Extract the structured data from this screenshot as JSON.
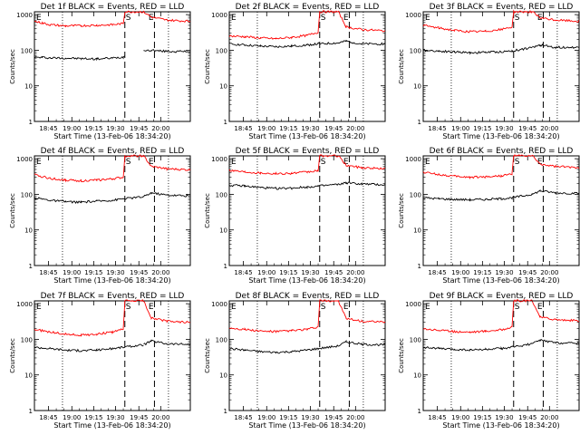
{
  "figure": {
    "xlabel": "Start Time (13-Feb-06 18:34:20)",
    "ylabel": "Counts/sec",
    "x_ticks": [
      "18:45",
      "19:00",
      "19:15",
      "19:30",
      "19:45",
      "20:00"
    ],
    "y_ticks": [
      "1",
      "10",
      "100",
      "1000"
    ],
    "marker_S": "S",
    "marker_E": "E",
    "colors": {
      "events": "#000000",
      "lld": "#ff0000",
      "axis": "#000000"
    }
  },
  "chart_data": [
    {
      "type": "line",
      "title": "Det 1f BLACK = Events, RED = LLD",
      "ylim": [
        1,
        1200
      ],
      "xlim": [
        0,
        100
      ],
      "gap": [
        58,
        70
      ],
      "markers": {
        "dotted": [
          18,
          86
        ],
        "dashed": [
          58,
          77
        ],
        "S": 58,
        "E": 72
      },
      "series": [
        {
          "name": "Events",
          "color": "#000000",
          "points": [
            [
              0,
              62
            ],
            [
              5,
              63
            ],
            [
              10,
              61
            ],
            [
              20,
              60
            ],
            [
              30,
              58
            ],
            [
              40,
              57
            ],
            [
              50,
              60
            ],
            [
              57,
              64
            ],
            [
              58,
              70
            ],
            [
              70,
              95
            ],
            [
              75,
              100
            ],
            [
              80,
              95
            ],
            [
              90,
              92
            ],
            [
              100,
              92
            ]
          ]
        },
        {
          "name": "LLD",
          "color": "#ff0000",
          "points": [
            [
              0,
              650
            ],
            [
              5,
              580
            ],
            [
              10,
              520
            ],
            [
              20,
              480
            ],
            [
              30,
              490
            ],
            [
              40,
              500
            ],
            [
              50,
              520
            ],
            [
              57,
              560
            ],
            [
              58,
              1200
            ],
            [
              70,
              1200
            ],
            [
              75,
              850
            ],
            [
              85,
              700
            ],
            [
              100,
              650
            ]
          ]
        }
      ]
    },
    {
      "type": "line",
      "title": "Det 2f BLACK = Events, RED = LLD",
      "ylim": [
        1,
        1200
      ],
      "xlim": [
        0,
        100
      ],
      "gap": [
        58,
        70
      ],
      "markers": {
        "dotted": [
          18,
          86
        ],
        "dashed": [
          58,
          77
        ],
        "S": 58,
        "E": 72
      },
      "series": [
        {
          "name": "Events",
          "color": "#000000",
          "points": [
            [
              0,
              150
            ],
            [
              10,
              140
            ],
            [
              20,
              130
            ],
            [
              30,
              125
            ],
            [
              40,
              130
            ],
            [
              50,
              140
            ],
            [
              57,
              150
            ],
            [
              70,
              160
            ],
            [
              75,
              180
            ],
            [
              85,
              150
            ],
            [
              100,
              150
            ]
          ]
        },
        {
          "name": "LLD",
          "color": "#ff0000",
          "points": [
            [
              0,
              250
            ],
            [
              10,
              240
            ],
            [
              20,
              220
            ],
            [
              30,
              210
            ],
            [
              40,
              230
            ],
            [
              50,
              260
            ],
            [
              57,
              320
            ],
            [
              58,
              1200
            ],
            [
              70,
              1200
            ],
            [
              75,
              450
            ],
            [
              85,
              380
            ],
            [
              100,
              350
            ]
          ]
        }
      ]
    },
    {
      "type": "line",
      "title": "Det 3f BLACK = Events, RED = LLD",
      "ylim": [
        1,
        1200
      ],
      "xlim": [
        0,
        100
      ],
      "gap": [
        58,
        70
      ],
      "markers": {
        "dotted": [
          18,
          86
        ],
        "dashed": [
          58,
          77
        ],
        "S": 58,
        "E": 72
      },
      "series": [
        {
          "name": "Events",
          "color": "#000000",
          "points": [
            [
              0,
              100
            ],
            [
              10,
              95
            ],
            [
              20,
              90
            ],
            [
              30,
              85
            ],
            [
              40,
              88
            ],
            [
              50,
              90
            ],
            [
              57,
              95
            ],
            [
              70,
              120
            ],
            [
              75,
              140
            ],
            [
              85,
              120
            ],
            [
              100,
              120
            ]
          ]
        },
        {
          "name": "LLD",
          "color": "#ff0000",
          "points": [
            [
              0,
              500
            ],
            [
              10,
              420
            ],
            [
              20,
              360
            ],
            [
              30,
              330
            ],
            [
              40,
              340
            ],
            [
              50,
              380
            ],
            [
              57,
              450
            ],
            [
              58,
              1200
            ],
            [
              70,
              1200
            ],
            [
              75,
              800
            ],
            [
              85,
              700
            ],
            [
              100,
              650
            ]
          ]
        }
      ]
    },
    {
      "type": "line",
      "title": "Det 4f BLACK = Events, RED = LLD",
      "ylim": [
        1,
        1200
      ],
      "xlim": [
        0,
        100
      ],
      "gap": [
        58,
        70
      ],
      "markers": {
        "dotted": [
          18,
          86
        ],
        "dashed": [
          58,
          77
        ],
        "S": 58,
        "E": 72
      },
      "series": [
        {
          "name": "Events",
          "color": "#000000",
          "points": [
            [
              0,
              80
            ],
            [
              10,
              68
            ],
            [
              20,
              62
            ],
            [
              30,
              60
            ],
            [
              40,
              64
            ],
            [
              50,
              68
            ],
            [
              57,
              75
            ],
            [
              70,
              85
            ],
            [
              75,
              110
            ],
            [
              85,
              95
            ],
            [
              100,
              90
            ]
          ]
        },
        {
          "name": "LLD",
          "color": "#ff0000",
          "points": [
            [
              0,
              350
            ],
            [
              10,
              280
            ],
            [
              20,
              250
            ],
            [
              30,
              240
            ],
            [
              40,
              250
            ],
            [
              50,
              270
            ],
            [
              57,
              300
            ],
            [
              58,
              1200
            ],
            [
              70,
              1200
            ],
            [
              75,
              600
            ],
            [
              85,
              520
            ],
            [
              100,
              480
            ]
          ]
        }
      ]
    },
    {
      "type": "line",
      "title": "Det 5f BLACK = Events, RED = LLD",
      "ylim": [
        1,
        1200
      ],
      "xlim": [
        0,
        100
      ],
      "gap": [
        58,
        70
      ],
      "markers": {
        "dotted": [
          18,
          86
        ],
        "dashed": [
          58,
          77
        ],
        "S": 58,
        "E": 72
      },
      "series": [
        {
          "name": "Events",
          "color": "#000000",
          "points": [
            [
              0,
              180
            ],
            [
              10,
              170
            ],
            [
              20,
              155
            ],
            [
              30,
              145
            ],
            [
              40,
              150
            ],
            [
              50,
              160
            ],
            [
              57,
              170
            ],
            [
              70,
              190
            ],
            [
              75,
              210
            ],
            [
              85,
              195
            ],
            [
              100,
              185
            ]
          ]
        },
        {
          "name": "LLD",
          "color": "#ff0000",
          "points": [
            [
              0,
              480
            ],
            [
              10,
              430
            ],
            [
              20,
              400
            ],
            [
              30,
              380
            ],
            [
              40,
              390
            ],
            [
              50,
              420
            ],
            [
              57,
              460
            ],
            [
              58,
              1200
            ],
            [
              70,
              1200
            ],
            [
              75,
              650
            ],
            [
              85,
              560
            ],
            [
              100,
              520
            ]
          ]
        }
      ]
    },
    {
      "type": "line",
      "title": "Det 6f BLACK = Events, RED = LLD",
      "ylim": [
        1,
        1200
      ],
      "xlim": [
        0,
        100
      ],
      "gap": [
        58,
        70
      ],
      "markers": {
        "dotted": [
          18,
          86
        ],
        "dashed": [
          58,
          77
        ],
        "S": 58,
        "E": 72
      },
      "series": [
        {
          "name": "Events",
          "color": "#000000",
          "points": [
            [
              0,
              80
            ],
            [
              10,
              75
            ],
            [
              20,
              72
            ],
            [
              30,
              70
            ],
            [
              40,
              72
            ],
            [
              50,
              75
            ],
            [
              57,
              80
            ],
            [
              70,
              100
            ],
            [
              75,
              125
            ],
            [
              85,
              110
            ],
            [
              100,
              105
            ]
          ]
        },
        {
          "name": "LLD",
          "color": "#ff0000",
          "points": [
            [
              0,
              420
            ],
            [
              10,
              360
            ],
            [
              20,
              320
            ],
            [
              30,
              300
            ],
            [
              40,
              310
            ],
            [
              50,
              330
            ],
            [
              57,
              370
            ],
            [
              58,
              1200
            ],
            [
              70,
              1200
            ],
            [
              75,
              700
            ],
            [
              85,
              600
            ],
            [
              100,
              560
            ]
          ]
        }
      ]
    },
    {
      "type": "line",
      "title": "Det 7f BLACK = Events, RED = LLD",
      "ylim": [
        1,
        1200
      ],
      "xlim": [
        0,
        100
      ],
      "gap": [
        58,
        70
      ],
      "markers": {
        "dotted": [
          18,
          86
        ],
        "dashed": [
          58,
          77
        ],
        "S": 58,
        "E": 72
      },
      "series": [
        {
          "name": "Events",
          "color": "#000000",
          "points": [
            [
              0,
              60
            ],
            [
              10,
              55
            ],
            [
              20,
              50
            ],
            [
              30,
              48
            ],
            [
              40,
              50
            ],
            [
              50,
              55
            ],
            [
              57,
              60
            ],
            [
              70,
              70
            ],
            [
              75,
              90
            ],
            [
              85,
              75
            ],
            [
              100,
              72
            ]
          ]
        },
        {
          "name": "LLD",
          "color": "#ff0000",
          "points": [
            [
              0,
              190
            ],
            [
              10,
              160
            ],
            [
              20,
              140
            ],
            [
              30,
              130
            ],
            [
              40,
              140
            ],
            [
              50,
              160
            ],
            [
              57,
              190
            ],
            [
              58,
              1200
            ],
            [
              70,
              1200
            ],
            [
              75,
              400
            ],
            [
              85,
              320
            ],
            [
              100,
              300
            ]
          ]
        }
      ]
    },
    {
      "type": "line",
      "title": "Det 8f BLACK = Events, RED = LLD",
      "ylim": [
        1,
        1200
      ],
      "xlim": [
        0,
        100
      ],
      "gap": [
        58,
        70
      ],
      "markers": {
        "dotted": [
          18,
          86
        ],
        "dashed": [
          58,
          77
        ],
        "S": 58,
        "E": 72
      },
      "series": [
        {
          "name": "Events",
          "color": "#000000",
          "points": [
            [
              0,
              55
            ],
            [
              10,
              50
            ],
            [
              20,
              45
            ],
            [
              30,
              43
            ],
            [
              40,
              45
            ],
            [
              50,
              50
            ],
            [
              57,
              55
            ],
            [
              70,
              65
            ],
            [
              75,
              85
            ],
            [
              85,
              72
            ],
            [
              100,
              70
            ]
          ]
        },
        {
          "name": "LLD",
          "color": "#ff0000",
          "points": [
            [
              0,
              210
            ],
            [
              10,
              190
            ],
            [
              20,
              170
            ],
            [
              30,
              165
            ],
            [
              40,
              175
            ],
            [
              50,
              190
            ],
            [
              57,
              220
            ],
            [
              58,
              1200
            ],
            [
              70,
              1200
            ],
            [
              75,
              380
            ],
            [
              85,
              320
            ],
            [
              100,
              300
            ]
          ]
        }
      ]
    },
    {
      "type": "line",
      "title": "Det 9f BLACK = Events, RED = LLD",
      "ylim": [
        1,
        1200
      ],
      "xlim": [
        0,
        100
      ],
      "gap": [
        58,
        70
      ],
      "markers": {
        "dotted": [
          18,
          86
        ],
        "dashed": [
          58,
          77
        ],
        "S": 58,
        "E": 72
      },
      "series": [
        {
          "name": "Events",
          "color": "#000000",
          "points": [
            [
              0,
              60
            ],
            [
              10,
              55
            ],
            [
              20,
              52
            ],
            [
              30,
              50
            ],
            [
              40,
              52
            ],
            [
              50,
              55
            ],
            [
              57,
              60
            ],
            [
              70,
              75
            ],
            [
              75,
              95
            ],
            [
              85,
              80
            ],
            [
              100,
              78
            ]
          ]
        },
        {
          "name": "LLD",
          "color": "#ff0000",
          "points": [
            [
              0,
              200
            ],
            [
              10,
              180
            ],
            [
              20,
              165
            ],
            [
              30,
              160
            ],
            [
              40,
              170
            ],
            [
              50,
              185
            ],
            [
              57,
              220
            ],
            [
              58,
              1200
            ],
            [
              70,
              1200
            ],
            [
              75,
              420
            ],
            [
              85,
              360
            ],
            [
              100,
              330
            ]
          ]
        }
      ]
    }
  ]
}
